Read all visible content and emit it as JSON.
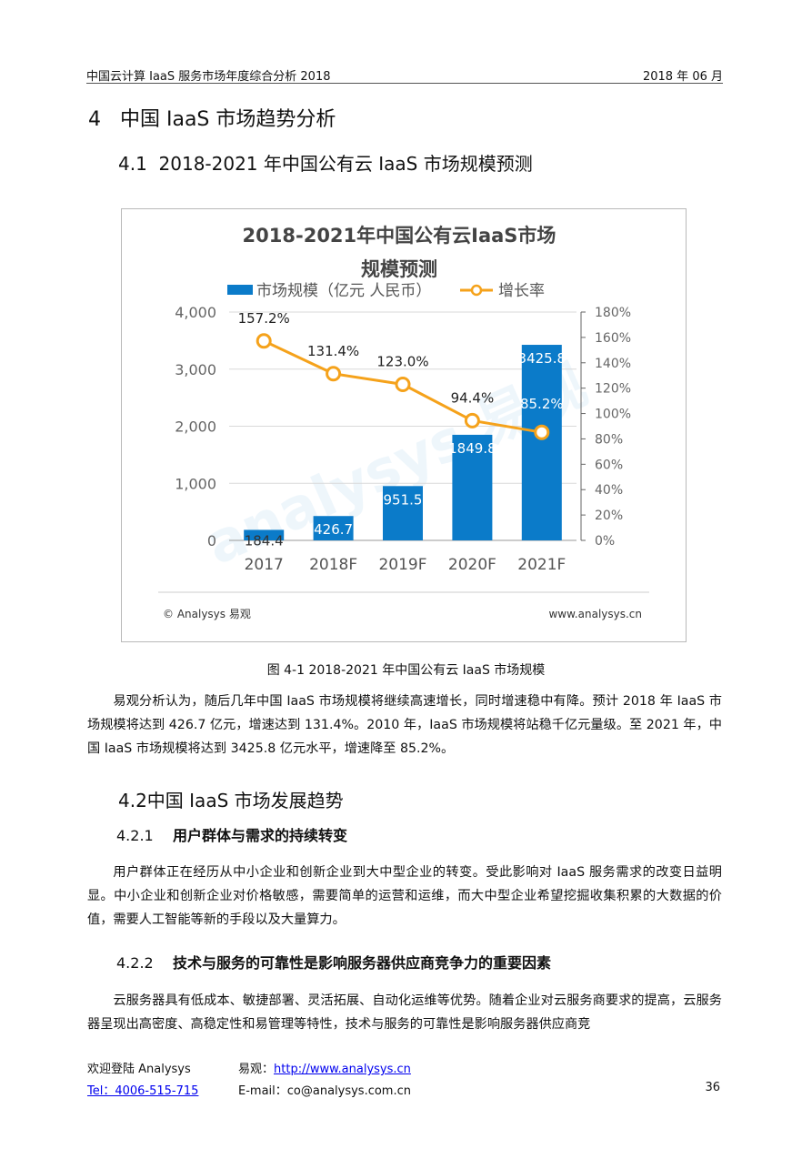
{
  "header": {
    "left": "中国云计算 IaaS 服务市场年度综合分析 2018",
    "right": "2018 年 06 月"
  },
  "section4": {
    "title": "4   中国 IaaS 市场趋势分析"
  },
  "section41": {
    "title": "4.1  2018-2021 年中国公有云 IaaS 市场规模预测"
  },
  "figure": {
    "caption": "图  4-1 2018-2021 年中国公有云 IaaS 市场规模",
    "footer_left": "© Analysys 易观",
    "footer_right": "www.analysys.cn",
    "watermark": "analysys 易观"
  },
  "chart_data": {
    "type": "bar",
    "title": "2018-2021年中国公有云IaaS市场规模预测",
    "title_lines": [
      "2018-2021年中国公有云IaaS市场",
      "规模预测"
    ],
    "categories": [
      "2017",
      "2018F",
      "2019F",
      "2020F",
      "2021F"
    ],
    "series": [
      {
        "name": "市场规模（亿元 人民币）",
        "type": "bar",
        "axis": "left",
        "values": [
          184.4,
          426.7,
          951.5,
          1849.8,
          3425.8
        ],
        "labels": [
          "184.4",
          "426.7",
          "951.5",
          "1849.8",
          "3425.8"
        ],
        "color": "#0b7bc9"
      },
      {
        "name": "增长率",
        "type": "line",
        "axis": "right",
        "values": [
          157.2,
          131.4,
          123.0,
          94.4,
          85.2
        ],
        "labels": [
          "157.2%",
          "131.4%",
          "123.0%",
          "94.4%",
          "85.2%"
        ],
        "color": "#f5a21b"
      }
    ],
    "y_left": {
      "min": 0,
      "max": 4000,
      "ticks": [
        "0",
        "1,000",
        "2,000",
        "3,000",
        "4,000"
      ]
    },
    "y_right": {
      "min": 0,
      "max": 180,
      "ticks": [
        "0%",
        "20%",
        "40%",
        "60%",
        "80%",
        "100%",
        "120%",
        "140%",
        "160%",
        "180%"
      ]
    },
    "grid": true,
    "legend_position": "top"
  },
  "para1": "易观分析认为，随后几年中国 IaaS 市场规模将继续高速增长，同时增速稳中有降。预计 2018 年 IaaS 市场规模将达到 426.7 亿元，增速达到 131.4%。2010 年，IaaS 市场规模将站稳千亿元量级。至 2021 年，中国 IaaS 市场规模将达到 3425.8 亿元水平，增速降至 85.2%。",
  "section42": {
    "title": "4.2中国 IaaS 市场发展趋势"
  },
  "section421": {
    "num": "4.2.1",
    "title": "用户群体与需求的持续转变"
  },
  "para2": "用户群体正在经历从中小企业和创新企业到大中型企业的转变。受此影响对 IaaS 服务需求的改变日益明显。中小企业和创新企业对价格敏感，需要简单的运营和运维，而大中型企业希望挖掘收集积累的大数据的价值，需要人工智能等新的手段以及大量算力。",
  "section422": {
    "num": "4.2.2",
    "title": "技术与服务的可靠性是影响服务器供应商竞争力的重要因素"
  },
  "para3": "云服务器具有低成本、敏捷部署、灵活拓展、自动化运维等优势。随着企业对云服务商要求的提高，云服务器呈现出高密度、高稳定性和易管理等特性，技术与服务的可靠性是影响服务器供应商竞",
  "footer": {
    "welcome": "欢迎登陆 Analysys",
    "yiguan_label": "易观：",
    "url": "http://www.analysys.cn",
    "tel": "Tel：4006-515-715",
    "email": "E-mail：co@analysys.com.cn",
    "page": "36"
  }
}
